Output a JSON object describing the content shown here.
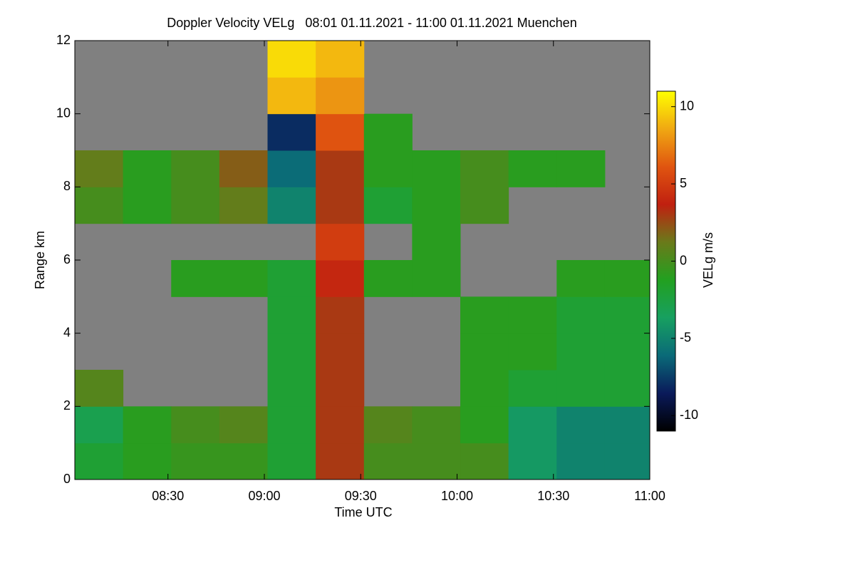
{
  "chart_data": {
    "type": "heatmap",
    "title": "Doppler Velocity VELg   08:01 01.11.2021 - 11:00 01.11.2021 Muenchen",
    "x_label": "Time UTC",
    "y_label": "Range km",
    "colorbar_label": "VELg m/s",
    "xlim": [
      481,
      660
    ],
    "xticks": [
      {
        "value": 510,
        "label": "08:30"
      },
      {
        "value": 540,
        "label": "09:00"
      },
      {
        "value": 570,
        "label": "09:30"
      },
      {
        "value": 600,
        "label": "10:00"
      },
      {
        "value": 630,
        "label": "10:30"
      },
      {
        "value": 660,
        "label": "11:00"
      }
    ],
    "ylim": [
      0,
      12
    ],
    "yticks": [
      0,
      2,
      4,
      6,
      8,
      10,
      12
    ],
    "clim": [
      -11,
      11
    ],
    "cticks": [
      10,
      5,
      0,
      -5,
      -10
    ],
    "colormap": [
      "#000000",
      "#0a1a5a",
      "#0a6a78",
      "#17a060",
      "#22a020",
      "#6a7a1a",
      "#c02010",
      "#e05510",
      "#f0a812",
      "#ffff00"
    ],
    "missing_color": "#808080",
    "xbins": [
      481,
      496,
      511,
      526,
      541,
      556,
      571,
      586,
      601,
      616,
      631,
      646,
      660
    ],
    "ybins": [
      0,
      1,
      2,
      3,
      4,
      5,
      6,
      7,
      8,
      9,
      10,
      11,
      12
    ],
    "values": [
      [
        -2,
        -1,
        -0.5,
        -0.5,
        -2,
        3,
        0,
        0,
        0,
        -4,
        -5,
        -5
      ],
      [
        -3,
        -1,
        0,
        0.5,
        -2,
        3,
        0.5,
        0,
        -1,
        -4,
        -5,
        -5
      ],
      [
        0.5,
        null,
        null,
        null,
        -2,
        3,
        null,
        null,
        -1,
        -2,
        -2,
        -2
      ],
      [
        null,
        null,
        null,
        null,
        -2,
        3,
        null,
        null,
        -1,
        -1,
        -2,
        -2
      ],
      [
        null,
        null,
        null,
        null,
        -2,
        3,
        null,
        null,
        -1,
        -1,
        -2,
        -2
      ],
      [
        null,
        null,
        -1,
        -1,
        -2,
        4,
        -1,
        -1,
        null,
        null,
        -1,
        -1
      ],
      [
        null,
        null,
        null,
        null,
        null,
        5,
        null,
        -1,
        null,
        null,
        null,
        null
      ],
      [
        0,
        -1,
        0,
        1,
        -5,
        3,
        -2,
        -1,
        0,
        null,
        null,
        null
      ],
      [
        1,
        -1,
        0,
        2,
        -6,
        3,
        -1,
        -1,
        0,
        -1,
        -1,
        null
      ],
      [
        null,
        null,
        null,
        null,
        -8,
        6,
        -1,
        null,
        null,
        null,
        null,
        null
      ],
      [
        null,
        null,
        null,
        null,
        9,
        8,
        null,
        null,
        null,
        null,
        null,
        null
      ],
      [
        null,
        null,
        null,
        null,
        10,
        9,
        null,
        null,
        null,
        null,
        null,
        null
      ]
    ]
  }
}
